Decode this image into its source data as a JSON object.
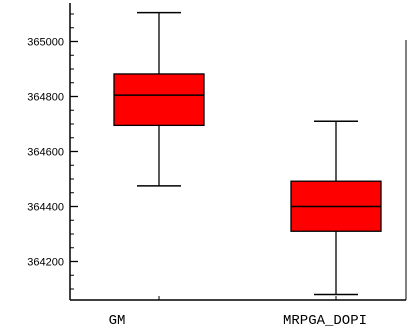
{
  "chart_data": {
    "type": "box",
    "title": "",
    "xlabel": "",
    "ylabel": "",
    "categories": [
      "GM",
      "MRPGA_DOPI"
    ],
    "boxes": [
      {
        "category": "GM",
        "whisker_low": 364475,
        "q1": 364695,
        "median": 364805,
        "q3": 364882,
        "whisker_high": 365105
      },
      {
        "category": "MRPGA_DOPI",
        "whisker_low": 364080,
        "q1": 364310,
        "median": 364400,
        "q3": 364492,
        "whisker_high": 364710
      }
    ],
    "ylim": [
      364060,
      365140
    ],
    "yticks": [
      364200,
      364400,
      364600,
      364800,
      365000
    ],
    "ytick_labels": [
      "364200",
      "364400",
      "364600",
      "364800",
      "365000"
    ],
    "minor_step": 50,
    "grid": false,
    "box_color": "#ff0000",
    "line_color": "#000000"
  }
}
